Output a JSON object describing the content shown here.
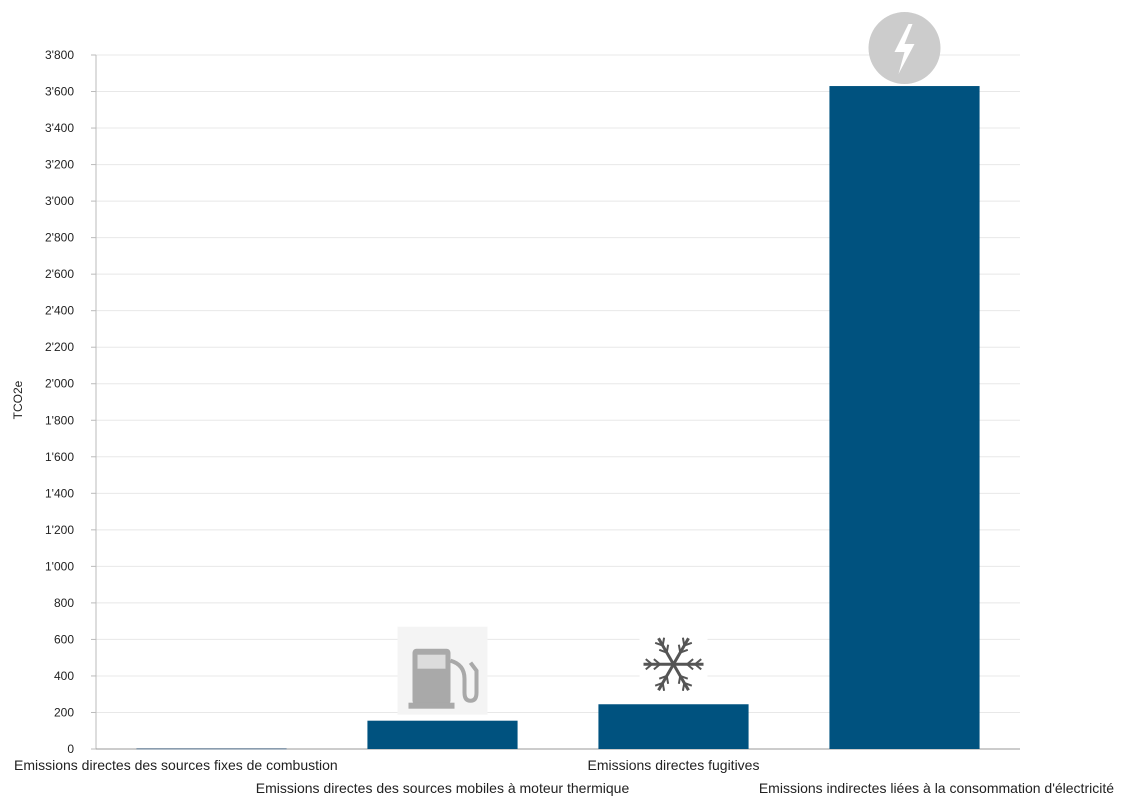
{
  "chart_data": {
    "type": "bar",
    "ylabel": "TCO2e",
    "ylim": [
      0,
      3800
    ],
    "y_ticks": [
      0,
      200,
      400,
      600,
      800,
      1000,
      1200,
      1400,
      1600,
      1800,
      2000,
      2200,
      2400,
      2600,
      2800,
      3000,
      3200,
      3400,
      3600,
      3800
    ],
    "y_tick_labels": [
      "0",
      "200",
      "400",
      "600",
      "800",
      "1'000",
      "1'200",
      "1'400",
      "1'600",
      "1'800",
      "2'000",
      "2'200",
      "2'400",
      "2'600",
      "2'800",
      "3'000",
      "3'200",
      "3'400",
      "3'600",
      "3'800"
    ],
    "categories": [
      "Emissions directes des sources fixes de combustion",
      "Emissions directes des sources mobiles à moteur thermique",
      "Emissions directes fugitives",
      "Emissions indirectes liées à la consommation d'électricité"
    ],
    "values": [
      5,
      155,
      245,
      3630
    ],
    "bar_color": "#00527f",
    "grid": true,
    "legend": "none",
    "icons": [
      "",
      "fuel-pump-icon",
      "snowflake-icon",
      "lightning-icon"
    ]
  }
}
